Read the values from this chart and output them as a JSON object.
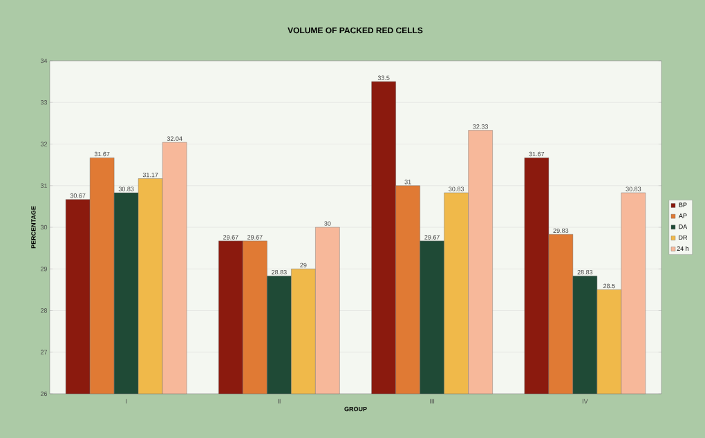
{
  "chart_data": {
    "type": "bar",
    "title": "VOLUME OF PACKED RED CELLS",
    "xlabel": "GROUP",
    "ylabel": "PERCENTAGE",
    "categories": [
      "I",
      "II",
      "III",
      "IV"
    ],
    "series": [
      {
        "name": "BP",
        "color": "#8b1a0e",
        "values": [
          30.67,
          29.67,
          33.5,
          31.67
        ]
      },
      {
        "name": "AP",
        "color": "#e07a34",
        "values": [
          31.67,
          29.67,
          31,
          29.83
        ]
      },
      {
        "name": "DA",
        "color": "#1f4a36",
        "values": [
          30.83,
          28.83,
          29.67,
          28.83
        ]
      },
      {
        "name": "DR",
        "color": "#f0b94a",
        "values": [
          31.17,
          29,
          30.83,
          28.5
        ]
      },
      {
        "name": "24 h",
        "color": "#f7b89a",
        "values": [
          32.04,
          30,
          32.33,
          30.83
        ]
      }
    ],
    "ylim": [
      26,
      34
    ],
    "yticks": [
      26,
      27,
      28,
      29,
      30,
      31,
      32,
      33,
      34
    ],
    "grid": "y",
    "legend": "right",
    "data_labels": true
  }
}
